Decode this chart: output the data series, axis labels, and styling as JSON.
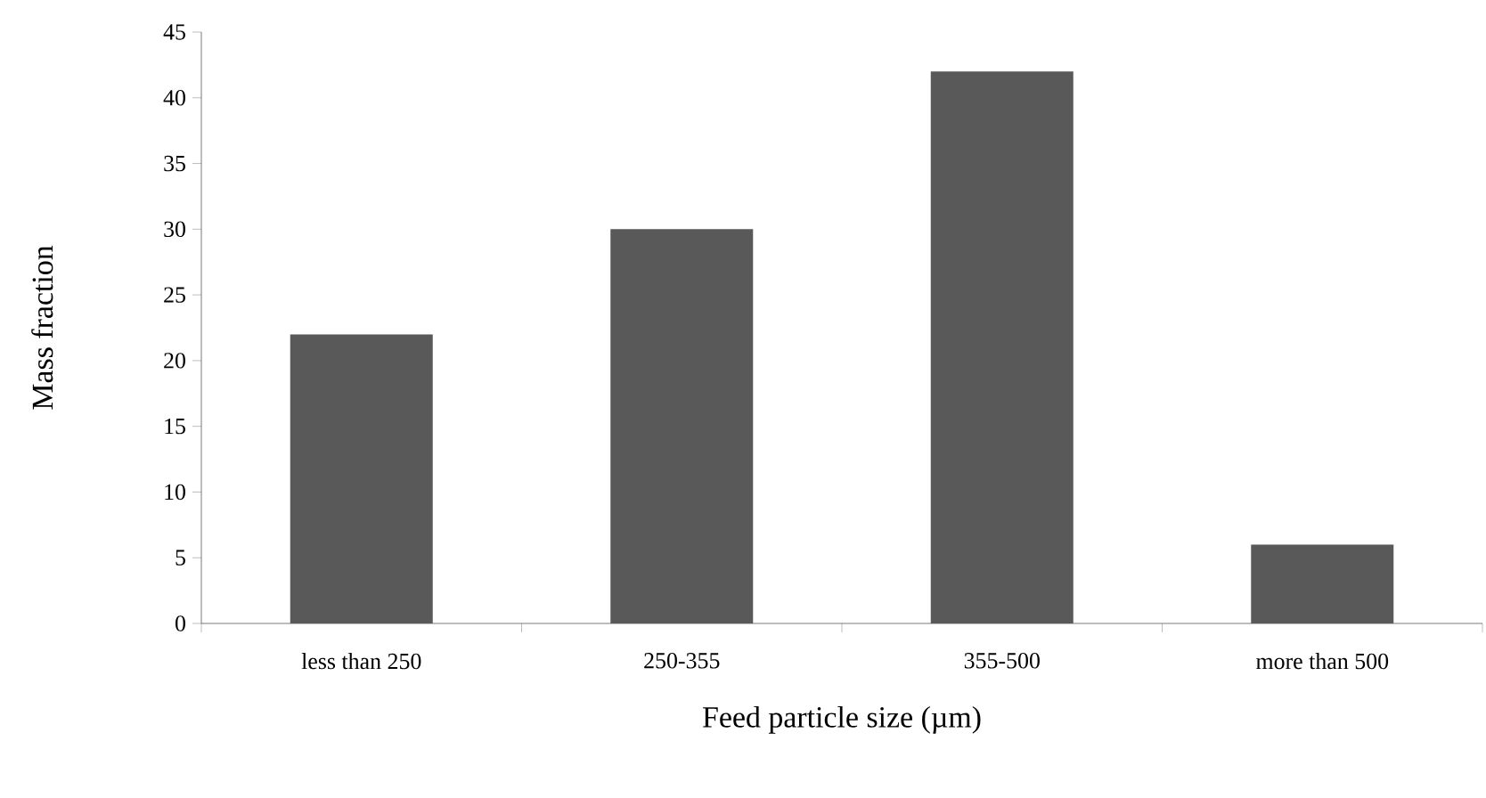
{
  "chart_data": {
    "type": "bar",
    "xlabel": "Feed particle size (µm)",
    "ylabel": "Mass fraction",
    "categories": [
      "less than 250",
      "250-355",
      "355-500",
      "more than 500"
    ],
    "values": [
      22,
      30,
      42,
      6
    ],
    "color": "#595959",
    "ylim": [
      0,
      45
    ],
    "yticks": [
      0,
      5,
      10,
      15,
      20,
      25,
      30,
      35,
      40,
      45
    ],
    "grid": false
  }
}
